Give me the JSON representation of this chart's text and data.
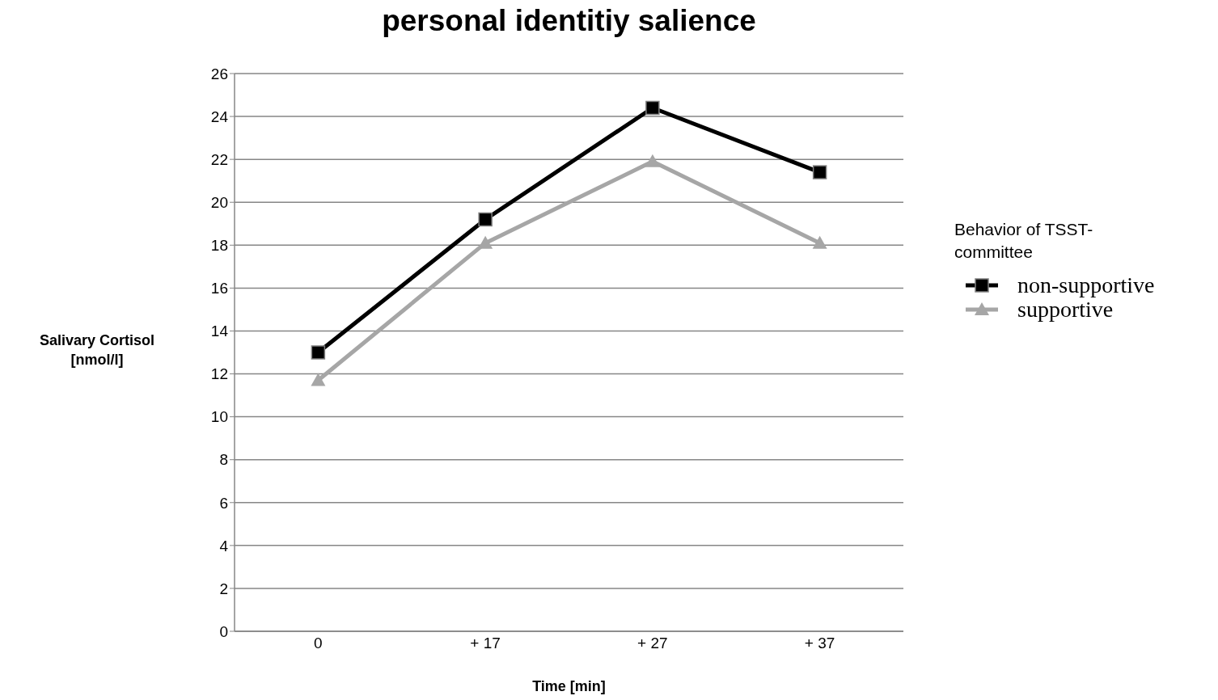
{
  "chart_data": {
    "type": "line",
    "title": "personal identitiy salience",
    "xlabel": "Time [min]",
    "ylabel": "Salivary Cortisol [nmol/l]",
    "legend_title": "Behavior of TSST-committee",
    "categories": [
      "0",
      "+ 17",
      "+ 27",
      "+ 37"
    ],
    "series": [
      {
        "name": "non-supportive",
        "color": "#000000",
        "marker": "square",
        "values": [
          13.0,
          19.2,
          24.4,
          21.4
        ]
      },
      {
        "name": "supportive",
        "color": "#a6a6a6",
        "marker": "triangle",
        "values": [
          11.7,
          18.1,
          21.9,
          18.1
        ]
      }
    ],
    "ylim": [
      0,
      26
    ],
    "yticks": [
      0,
      2,
      4,
      6,
      8,
      10,
      12,
      14,
      16,
      18,
      20,
      22,
      24,
      26
    ],
    "grid": "y",
    "legend": "right",
    "line_style": "solid"
  }
}
